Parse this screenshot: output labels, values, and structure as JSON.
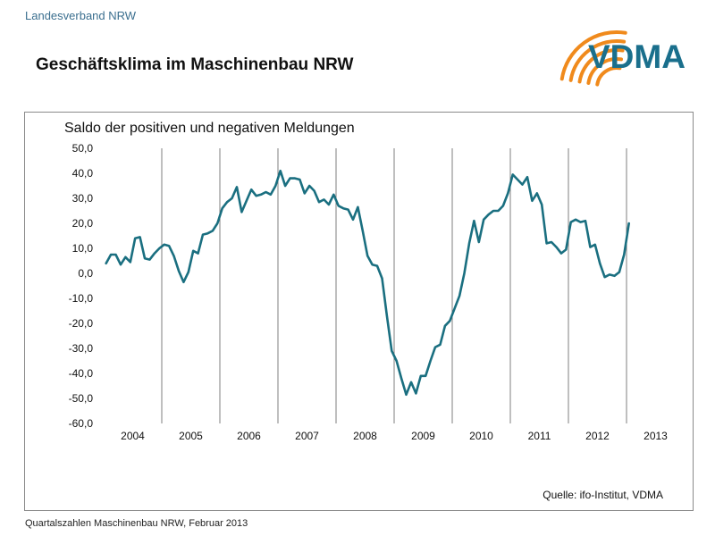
{
  "header": {
    "org_label": "Landesverband NRW",
    "title": "Geschäftsklima im Maschinenbau NRW",
    "logo_text": "VDMA"
  },
  "footer": {
    "text": "Quartalszahlen Maschinenbau NRW, Februar 2013"
  },
  "colors": {
    "line": "#1a6f80",
    "logo_blue": "#1a6f8c",
    "logo_orange": "#f08a1c",
    "gridline": "#7f7f7f"
  },
  "chart_data": {
    "type": "line",
    "title": "Saldo der positiven und negativen Meldungen",
    "source": "Quelle: ifo-Institut, VDMA",
    "xlabel": "",
    "ylabel": "",
    "ylim": [
      -60,
      50
    ],
    "yticks": [
      "50,0",
      "40,0",
      "30,0",
      "20,0",
      "10,0",
      "0,0",
      "-10,0",
      "-20,0",
      "-30,0",
      "-40,0",
      "-50,0",
      "-60,0"
    ],
    "ytick_values": [
      50,
      40,
      30,
      20,
      10,
      0,
      -10,
      -20,
      -30,
      -40,
      -50,
      -60
    ],
    "years": [
      "2004",
      "2005",
      "2006",
      "2007",
      "2008",
      "2009",
      "2010",
      "2011",
      "2012",
      "2013"
    ],
    "grid": "vertical lines at year boundaries",
    "series": [
      {
        "values": [
          4,
          7.5,
          7.5,
          3.5,
          6.5,
          4.5,
          14,
          14.5,
          6,
          5.5,
          8,
          10,
          11.5,
          11,
          7,
          1,
          -3.5,
          0.5,
          9,
          8,
          15.5,
          16,
          17,
          20,
          26,
          28.5,
          30,
          34.5,
          24.5,
          29,
          33.5,
          31,
          31.5,
          32.5,
          31.5,
          35,
          41,
          35,
          38,
          38,
          37.5,
          32,
          35,
          33,
          28.5,
          29.5,
          27.5,
          31.5,
          27,
          26,
          25.5,
          21.5,
          26.5,
          17,
          7,
          3.5,
          3,
          -2,
          -17,
          -31,
          -35,
          -42,
          -48.5,
          -43.5,
          -48,
          -41,
          -41,
          -35,
          -29.5,
          -28.5,
          -21,
          -19,
          -14,
          -9,
          0,
          12,
          21,
          12.5,
          21.5,
          23.5,
          25,
          25,
          27,
          32,
          39.5,
          37.5,
          35.5,
          38.5,
          29,
          32,
          27.5,
          12,
          12.5,
          10.5,
          8,
          9.5,
          20.5,
          21.5,
          20.5,
          21,
          10.5,
          11.5,
          4,
          -1.5,
          -0.5,
          -1,
          0.5,
          7.5,
          20
        ]
      }
    ]
  }
}
